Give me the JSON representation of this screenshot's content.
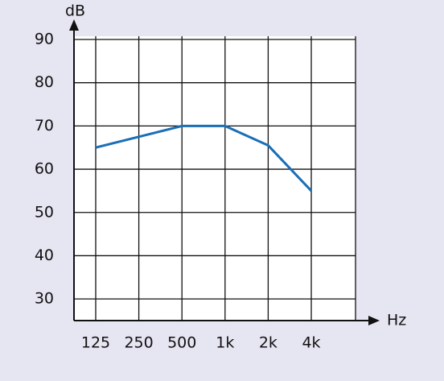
{
  "chart_data": {
    "type": "line",
    "y_label": "dB",
    "x_label": "Hz",
    "categories": [
      "125",
      "250",
      "500",
      "1k",
      "2k",
      "4k"
    ],
    "series": [
      {
        "color": "#1a6fb6",
        "values": [
          65,
          67.5,
          70,
          70,
          65.5,
          55
        ]
      }
    ],
    "ylim": [
      25,
      90
    ],
    "yticks": [
      30,
      40,
      50,
      60,
      70,
      80,
      90
    ],
    "grid": true
  }
}
